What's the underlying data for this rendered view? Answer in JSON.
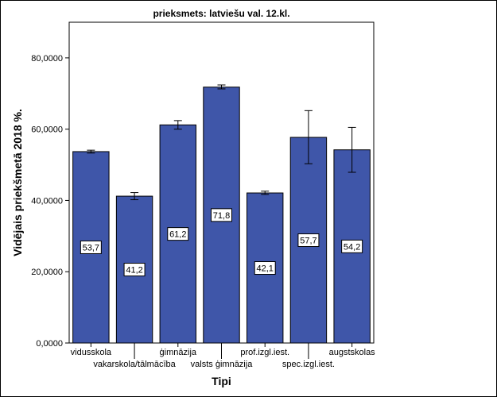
{
  "chart_data": {
    "type": "bar",
    "title": "prieksmets: latviešu val. 12.kl.",
    "xlabel": "Tipi",
    "ylabel": "Vidējais priekšmetā 2018 %.",
    "ylim": [
      0,
      90
    ],
    "yticks": [
      0,
      20,
      40,
      60,
      80
    ],
    "ytick_labels": [
      "0,0000",
      "20,0000",
      "40,0000",
      "60,0000",
      "80,0000"
    ],
    "categories": [
      "vidusskola",
      "vakarskola/tālmācība",
      "ģimnāzija",
      "valsts ģimnāzija",
      "prof.izgl.iest.",
      "spec.izgl.iest.",
      "augstskolas"
    ],
    "values": [
      53.7,
      41.2,
      61.2,
      71.8,
      42.1,
      57.7,
      54.2
    ],
    "value_labels": [
      "53,7",
      "41,2",
      "61,2",
      "71,8",
      "42,1",
      "57,7",
      "54,2"
    ],
    "error_low": [
      53.3,
      40.2,
      60.0,
      71.3,
      41.7,
      50.3,
      47.9
    ],
    "error_high": [
      54.1,
      42.2,
      62.4,
      72.4,
      42.6,
      65.2,
      60.5
    ],
    "bar_color": "#3f56a9",
    "background": "#ffffff",
    "grid": false,
    "legend": "none"
  }
}
